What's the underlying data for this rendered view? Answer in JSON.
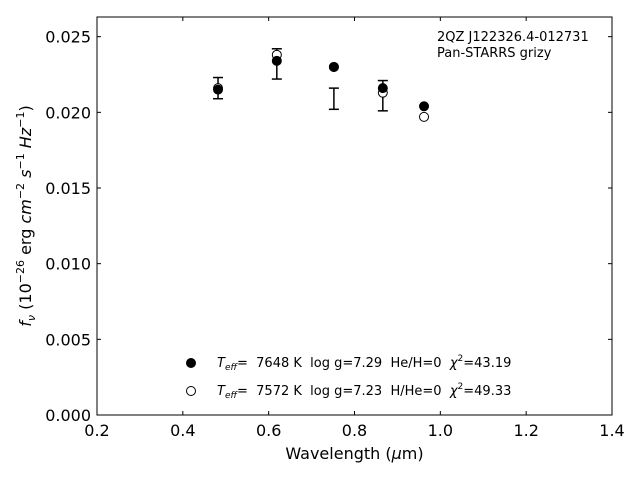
{
  "chart_data": {
    "type": "scatter",
    "xlabel": "Wavelength (μm)",
    "ylabel": "f_ν (10^-26 erg cm^-2 s^-1 Hz^-1)",
    "xlim": [
      0.2,
      1.4
    ],
    "ylim": [
      0.0,
      0.0263
    ],
    "x_ticks": [
      0.2,
      0.4,
      0.6,
      0.8,
      1.0,
      1.2,
      1.4
    ],
    "x_tick_labels": [
      "0.2",
      "0.4",
      "0.6",
      "0.8",
      "1.0",
      "1.2",
      "1.4"
    ],
    "y_ticks": [
      0.0,
      0.005,
      0.01,
      0.015,
      0.02,
      0.025
    ],
    "y_tick_labels": [
      "0.000",
      "0.005",
      "0.010",
      "0.015",
      "0.020",
      "0.025"
    ],
    "grid": false,
    "annotation": {
      "line1": "2QZ J122326.4-012731",
      "line2": "Pan-STARRS grizy",
      "placement": "top-right"
    },
    "observed": {
      "x": [
        0.482,
        0.619,
        0.752,
        0.866,
        0.962
      ],
      "y": [
        0.0216,
        0.0232,
        0.0209,
        0.0211,
        null
      ],
      "yerr": [
        0.0007,
        0.001,
        0.0007,
        0.001,
        null
      ]
    },
    "series": [
      {
        "marker": "filled-circle",
        "legend_parts": [
          "T",
          "eff",
          "=  7648 K  log g=7.29  He/H=0  ",
          "χ",
          "2",
          "=43.19"
        ],
        "x": [
          0.482,
          0.619,
          0.752,
          0.866,
          0.962
        ],
        "y": [
          0.0215,
          0.0234,
          0.023,
          0.0216,
          0.0204
        ]
      },
      {
        "marker": "open-circle",
        "legend_parts": [
          "T",
          "eff",
          "=  7572 K  log g=7.23  H/He=0  ",
          "χ",
          "2",
          "=49.33"
        ],
        "x": [
          0.482,
          0.619,
          0.752,
          0.866,
          0.962
        ],
        "y": [
          0.0216,
          0.0238,
          0.023,
          0.0213,
          0.0197
        ]
      }
    ],
    "legend_placement": "bottom-center"
  }
}
